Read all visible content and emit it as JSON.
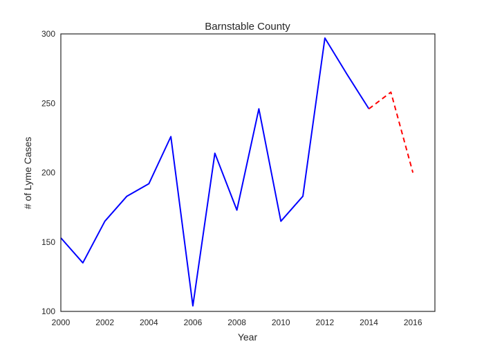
{
  "chart_data": {
    "type": "line",
    "title": "Barnstable County",
    "xlabel": "Year",
    "ylabel": "# of Lyme Cases",
    "xlim": [
      2000,
      2017
    ],
    "ylim": [
      100,
      300
    ],
    "xticks": [
      2000,
      2002,
      2004,
      2006,
      2008,
      2010,
      2012,
      2014,
      2016
    ],
    "yticks": [
      100,
      150,
      200,
      250,
      300
    ],
    "grid": false,
    "series": [
      {
        "color": "#0000ff",
        "style": "solid",
        "x": [
          2000,
          2001,
          2002,
          2003,
          2004,
          2005,
          2006,
          2007,
          2008,
          2009,
          2010,
          2011,
          2012,
          2013,
          2014
        ],
        "y": [
          153,
          135,
          165,
          183,
          192,
          226,
          104,
          214,
          173,
          246,
          165,
          183,
          297,
          271,
          246
        ]
      },
      {
        "color": "#ff0000",
        "style": "dashed",
        "x": [
          2014,
          2015,
          2016
        ],
        "y": [
          246,
          258,
          200
        ]
      }
    ]
  }
}
